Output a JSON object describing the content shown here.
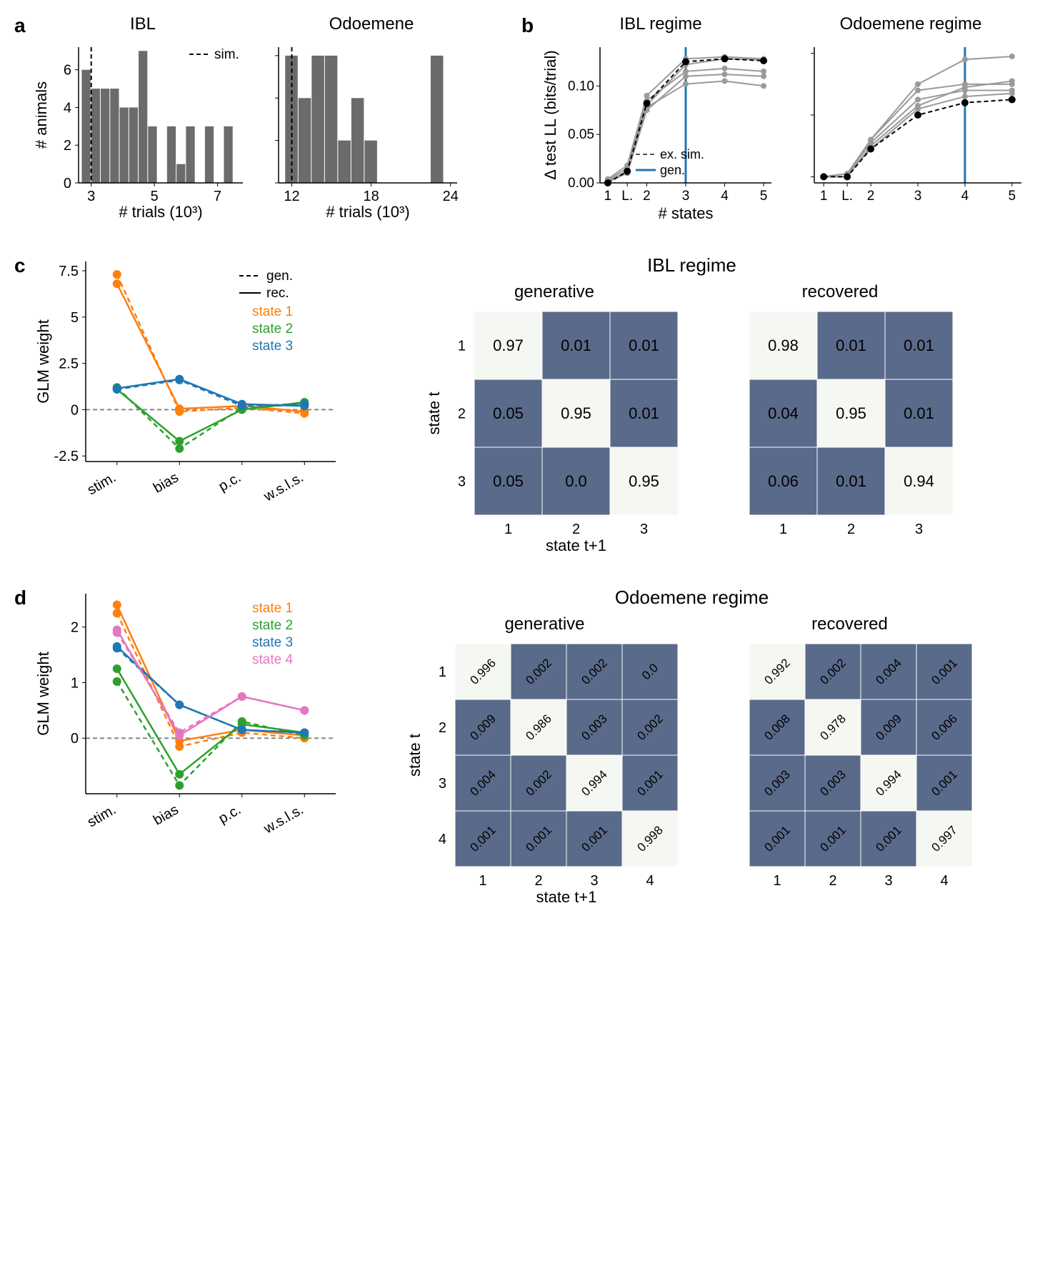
{
  "colors": {
    "bar": "#6b6b6b",
    "dash": "#000000",
    "grid": "#ffffff",
    "blue_line": "#1f77b4",
    "gray_line": "#9a9a9a",
    "black_line": "#000000",
    "state1": "#ff7f0e",
    "state2": "#2ca02c",
    "state3": "#1f77b4",
    "state4": "#e377c2",
    "hm_dark": "#5a6a8a",
    "hm_light": "#f5f7f2",
    "dash_gray": "#888888"
  },
  "a": {
    "label": "a",
    "ylabel": "# animals",
    "xlabel": "# trials (10³)",
    "sim_label": "sim.",
    "ibl": {
      "title": "IBL",
      "xticks": [
        3,
        5,
        7
      ],
      "yticks": [
        0,
        2,
        4,
        6
      ],
      "xlim": [
        2.6,
        7.8
      ],
      "ylim": [
        0,
        7.2
      ],
      "bin_edges": [
        2.7,
        3.0,
        3.3,
        3.6,
        3.9,
        4.2,
        4.5,
        4.8,
        5.1,
        5.4,
        5.7,
        6.0,
        6.3,
        6.6,
        6.9,
        7.2,
        7.5
      ],
      "counts": [
        6,
        5,
        5,
        5,
        4,
        4,
        7,
        3,
        0,
        3,
        1,
        3,
        0,
        3,
        0,
        3
      ],
      "dash_x": 3.0
    },
    "odo": {
      "title": "Odoemene",
      "xticks": [
        12,
        18,
        24
      ],
      "yticks": [
        0,
        1,
        2,
        3
      ],
      "xlim": [
        11,
        24.5
      ],
      "ylim": [
        0,
        3.2
      ],
      "bin_edges": [
        11.5,
        12.5,
        13.5,
        14.5,
        15.5,
        16.5,
        17.5,
        18.5,
        19.5,
        20.5,
        21.5,
        22.5,
        23.5
      ],
      "counts": [
        3,
        2,
        3,
        3,
        1,
        2,
        1,
        0,
        0,
        0,
        0,
        3
      ],
      "dash_x": 12
    }
  },
  "b": {
    "label": "b",
    "ylabel": "Δ test LL (bits/trial)",
    "xlabel": "# states",
    "xticks_labels": [
      "1",
      "L.",
      "2",
      "3",
      "4",
      "5"
    ],
    "xticks_pos": [
      1,
      1.5,
      2,
      3,
      4,
      5
    ],
    "legend": {
      "ex_sim": "ex. sim.",
      "gen": "gen."
    },
    "ibl": {
      "title": "IBL regime",
      "ylim": [
        0,
        0.14
      ],
      "yticks": [
        0.0,
        0.05,
        0.1
      ],
      "vline_x": 3,
      "lines": [
        {
          "color": "gray",
          "y": [
            0.003,
            0.015,
            0.085,
            0.115,
            0.118,
            0.115
          ]
        },
        {
          "color": "gray",
          "y": [
            0.002,
            0.012,
            0.08,
            0.122,
            0.128,
            0.127
          ]
        },
        {
          "color": "gray",
          "y": [
            0.001,
            0.01,
            0.075,
            0.11,
            0.112,
            0.11
          ]
        },
        {
          "color": "gray",
          "y": [
            0.004,
            0.018,
            0.09,
            0.128,
            0.13,
            0.128
          ]
        },
        {
          "color": "gray",
          "y": [
            0.002,
            0.011,
            0.078,
            0.102,
            0.105,
            0.1
          ]
        }
      ],
      "black": {
        "y": [
          0.0,
          0.012,
          0.082,
          0.125,
          0.128,
          0.126
        ]
      }
    },
    "odo": {
      "title": "Odoemene regime",
      "ylim": [
        -0.002,
        0.042
      ],
      "yticks": [
        0.0,
        0.02,
        0.04
      ],
      "vline_x": 4,
      "lines": [
        {
          "color": "gray",
          "y": [
            0.0,
            0.001,
            0.012,
            0.03,
            0.038,
            0.039
          ]
        },
        {
          "color": "gray",
          "y": [
            0.0,
            0.0,
            0.01,
            0.023,
            0.029,
            0.031
          ]
        },
        {
          "color": "gray",
          "y": [
            0.0,
            0.001,
            0.011,
            0.025,
            0.028,
            0.028
          ]
        },
        {
          "color": "gray",
          "y": [
            0.0,
            0.001,
            0.009,
            0.022,
            0.026,
            0.027
          ]
        },
        {
          "color": "gray",
          "y": [
            0.0,
            0.0,
            0.012,
            0.028,
            0.03,
            0.03
          ]
        }
      ],
      "black": {
        "y": [
          0.0,
          0.0,
          0.009,
          0.02,
          0.024,
          0.025
        ]
      }
    }
  },
  "c": {
    "label": "c",
    "regime_title": "IBL regime",
    "weights": {
      "ylabel": "GLM weight",
      "xcats": [
        "stim.",
        "bias",
        "p.c.",
        "w.s.l.s."
      ],
      "yticks": [
        -2.5,
        0,
        2.5,
        5.0,
        7.5
      ],
      "ylim": [
        -2.8,
        8.0
      ],
      "legend": {
        "gen": "gen.",
        "rec": "rec.",
        "s1": "state 1",
        "s2": "state 2",
        "s3": "state 3"
      },
      "series": [
        {
          "state": 1,
          "gen": [
            7.3,
            -0.1,
            0.1,
            -0.2
          ],
          "rec": [
            6.8,
            0.05,
            0.2,
            -0.1
          ]
        },
        {
          "state": 2,
          "gen": [
            1.2,
            -2.1,
            0.1,
            0.3
          ],
          "rec": [
            1.1,
            -1.7,
            0.0,
            0.4
          ]
        },
        {
          "state": 3,
          "gen": [
            1.1,
            1.6,
            0.2,
            0.3
          ],
          "rec": [
            1.15,
            1.65,
            0.3,
            0.2
          ]
        }
      ]
    },
    "hm": {
      "xlabel": "state t+1",
      "ylabel": "state t",
      "ticks": [
        1,
        2,
        3
      ],
      "gen_title": "generative",
      "rec_title": "recovered",
      "gen": [
        [
          "0.97",
          "0.01",
          "0.01"
        ],
        [
          "0.05",
          "0.95",
          "0.01"
        ],
        [
          "0.05",
          "0.0",
          "0.95"
        ]
      ],
      "rec": [
        [
          "0.98",
          "0.01",
          "0.01"
        ],
        [
          "0.04",
          "0.95",
          "0.01"
        ],
        [
          "0.06",
          "0.01",
          "0.94"
        ]
      ]
    }
  },
  "d": {
    "label": "d",
    "regime_title": "Odoemene regime",
    "weights": {
      "ylabel": "GLM weight",
      "xcats": [
        "stim.",
        "bias",
        "p.c.",
        "w.s.l.s."
      ],
      "yticks": [
        0,
        1,
        2
      ],
      "ylim": [
        -1.0,
        2.6
      ],
      "legend": {
        "s1": "state 1",
        "s2": "state 2",
        "s3": "state 3",
        "s4": "state 4"
      },
      "series": [
        {
          "state": 1,
          "gen": [
            2.25,
            -0.15,
            0.1,
            0.0
          ],
          "rec": [
            2.4,
            -0.05,
            0.15,
            0.05
          ]
        },
        {
          "state": 2,
          "gen": [
            1.02,
            -0.85,
            0.3,
            0.05
          ],
          "rec": [
            1.25,
            -0.65,
            0.25,
            0.1
          ]
        },
        {
          "state": 3,
          "gen": [
            1.62,
            0.6,
            0.15,
            0.1
          ],
          "rec": [
            1.65,
            0.6,
            0.15,
            0.1
          ]
        },
        {
          "state": 4,
          "gen": [
            1.9,
            0.1,
            0.75,
            0.5
          ],
          "rec": [
            1.95,
            0.05,
            0.75,
            0.5
          ]
        }
      ]
    },
    "hm": {
      "xlabel": "state t+1",
      "ylabel": "state t",
      "ticks": [
        1,
        2,
        3,
        4
      ],
      "gen_title": "generative",
      "rec_title": "recovered",
      "gen": [
        [
          "0.996",
          "0.002",
          "0.002",
          "0.0"
        ],
        [
          "0.009",
          "0.986",
          "0.003",
          "0.002"
        ],
        [
          "0.004",
          "0.002",
          "0.994",
          "0.001"
        ],
        [
          "0.001",
          "0.001",
          "0.001",
          "0.998"
        ]
      ],
      "rec": [
        [
          "0.992",
          "0.002",
          "0.004",
          "0.001"
        ],
        [
          "0.008",
          "0.978",
          "0.009",
          "0.006"
        ],
        [
          "0.003",
          "0.003",
          "0.994",
          "0.001"
        ],
        [
          "0.001",
          "0.001",
          "0.001",
          "0.997"
        ]
      ]
    }
  }
}
